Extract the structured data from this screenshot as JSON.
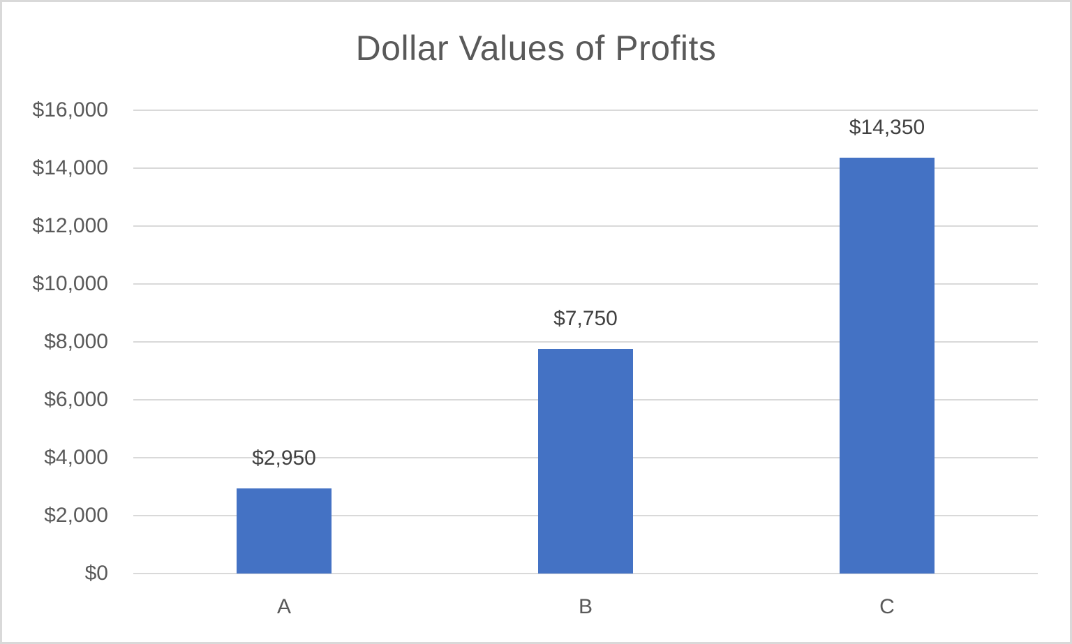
{
  "chart_data": {
    "type": "bar",
    "title": "Dollar Values of Profits",
    "xlabel": "",
    "ylabel": "",
    "categories": [
      "A",
      "B",
      "C"
    ],
    "values": [
      2950,
      7750,
      14350
    ],
    "data_labels": [
      "$2,950",
      "$7,750",
      "$14,350"
    ],
    "ylim": [
      0,
      16000
    ],
    "yticks": [
      0,
      2000,
      4000,
      6000,
      8000,
      10000,
      12000,
      14000,
      16000
    ],
    "ytick_labels": [
      "$0",
      "$2,000",
      "$4,000",
      "$6,000",
      "$8,000",
      "$10,000",
      "$12,000",
      "$14,000",
      "$16,000"
    ],
    "grid": true,
    "legend": null,
    "bar_color": "#4472C4"
  },
  "colors": {
    "bar": "#4472C4",
    "gridline": "#D9D9D9",
    "text": "#595959",
    "data_label": "#404040",
    "border": "#D9D9D9"
  }
}
